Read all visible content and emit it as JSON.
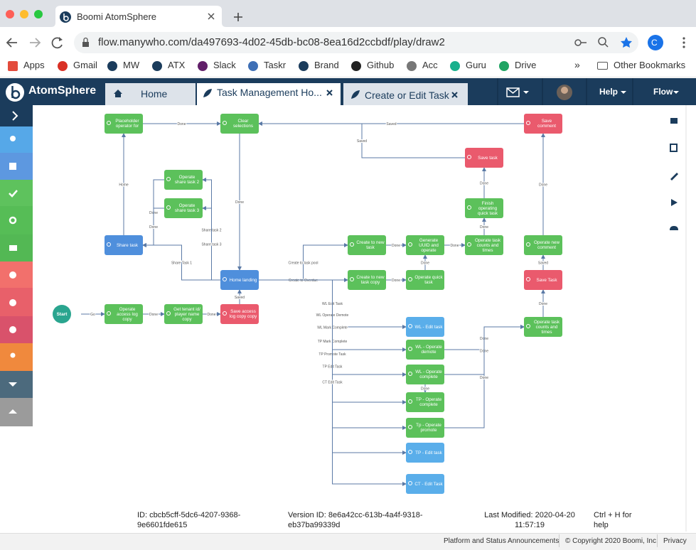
{
  "browser": {
    "tab_title": "Boomi AtomSphere",
    "url": "flow.manywho.com/da497693-4d02-45db-bc08-8ea16d2ccbdf/play/draw2",
    "profile": "C",
    "bookmarks": [
      "Apps",
      "Gmail",
      "MW",
      "ATX",
      "Slack",
      "Taskr",
      "Brand",
      "Github",
      "Acc",
      "Guru",
      "Drive"
    ],
    "more": "»",
    "other_bookmarks": "Other Bookmarks"
  },
  "app": {
    "logo": "AtomSphere",
    "tabs": [
      "Home",
      "Task Management Ho...",
      "Create or Edit Task"
    ],
    "menus": [
      "Help",
      "Flow"
    ]
  },
  "flow": {
    "nodes": [
      {
        "label": "Placeholder operator for",
        "color": "#5cc15b"
      },
      {
        "label": "Clear selections",
        "color": "#5cc15b"
      },
      {
        "label": "Save comment",
        "color": "#ea5a6d"
      },
      {
        "label": "Save task",
        "color": "#ea5a6d"
      },
      {
        "label": "Operate share task 2",
        "color": "#5cc15b"
      },
      {
        "label": "Operate share task 3",
        "color": "#5cc15b"
      },
      {
        "label": "Finish operating quick task",
        "color": "#5cc15b"
      },
      {
        "label": "Share task",
        "color": "#4f8fdc"
      },
      {
        "label": "Create to new task",
        "color": "#5cc15b"
      },
      {
        "label": "Generate UUID and operate",
        "color": "#5cc15b"
      },
      {
        "label": "Operate task counts and times",
        "color": "#5cc15b"
      },
      {
        "label": "Operate new comment",
        "color": "#5cc15b"
      },
      {
        "label": "Home landing",
        "color": "#4f8fdc"
      },
      {
        "label": "Create to new task copy",
        "color": "#5cc15b"
      },
      {
        "label": "Operate quick task",
        "color": "#5cc15b"
      },
      {
        "label": "Save Task",
        "color": "#ea5a6d"
      },
      {
        "label": "Start",
        "color": "#2aa58f",
        "shape": "circle"
      },
      {
        "label": "Operate access log copy",
        "color": "#5cc15b"
      },
      {
        "label": "Get tenant id/ player name copy",
        "color": "#5cc15b"
      },
      {
        "label": "Save access log copy copy",
        "color": "#ea5a6d"
      },
      {
        "label": "Operate task counts and times",
        "color": "#5cc15b"
      },
      {
        "label": "WL - Edit task",
        "color": "#5aaeea"
      },
      {
        "label": "WL - Operate demote",
        "color": "#5cc15b"
      },
      {
        "label": "WL - Operate complete",
        "color": "#5cc15b"
      },
      {
        "label": "TP - Operate complete",
        "color": "#5cc15b"
      },
      {
        "label": "Tp - Operate promote",
        "color": "#5cc15b"
      },
      {
        "label": "TP - Edit task",
        "color": "#5aaeea"
      },
      {
        "label": "CT - Edit Task",
        "color": "#5aaeea"
      }
    ],
    "edge_labels": [
      "Done",
      "Saved",
      "Saved",
      "Done",
      "Home",
      "Done",
      "Done",
      "Share task 2",
      "Share task 3",
      "Share Task 1",
      "Create to task pool",
      "Create to Overdue",
      "Done",
      "Done",
      "Done",
      "Done",
      "Done",
      "Done",
      "Done",
      "Saved",
      "Done",
      "Go",
      "Done",
      "Done",
      "Saved",
      "WL Edit Task",
      "WL Operate Demote",
      "WL Mark Complete",
      "TP Mark Complete",
      "TP Promote Task",
      "TP Edit Task",
      "CT Edit Task",
      "Done",
      "Done",
      "Done",
      "Done"
    ]
  },
  "footer": {
    "id": "ID: cbcb5cff-5dc6-4207-9368-9e6601fde615",
    "version": "Version ID: 8e6a42cc-613b-4a4f-9318-eb37ba99339d",
    "modified": "Last Modified: 2020-04-20 11:57:19",
    "help": "Ctrl + H for help"
  },
  "status_bar": {
    "announcements": "Platform and Status Announcements",
    "copyright": "© Copyright 2020 Boomi, Inc.",
    "privacy": "Privacy"
  }
}
